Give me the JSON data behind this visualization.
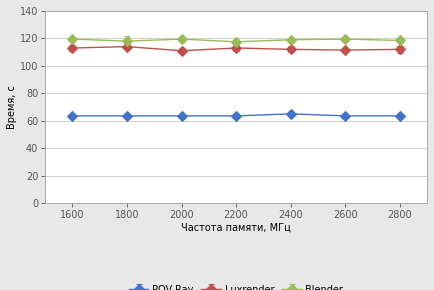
{
  "x": [
    1600,
    1800,
    2000,
    2200,
    2400,
    2600,
    2800
  ],
  "povray_y": [
    63.5,
    63.5,
    63.5,
    63.5,
    65.0,
    63.5,
    63.5
  ],
  "povray_err": [
    0.3,
    0.3,
    0.3,
    0.3,
    0.3,
    0.3,
    0.3
  ],
  "luxrender_y": [
    113.0,
    114.0,
    111.0,
    113.0,
    112.0,
    111.5,
    112.0
  ],
  "luxrender_err": [
    2.5,
    2.0,
    2.0,
    2.5,
    2.0,
    1.5,
    2.5
  ],
  "blender_y": [
    119.5,
    118.0,
    119.5,
    117.5,
    119.0,
    119.5,
    118.5
  ],
  "blender_err": [
    1.5,
    3.5,
    1.5,
    2.0,
    1.5,
    1.5,
    1.5
  ],
  "povray_color": "#4472C4",
  "luxrender_color": "#C0504D",
  "blender_color": "#9BBB59",
  "xlabel": "Частота памяти, МГц",
  "ylabel": "Время, с",
  "ylim": [
    0,
    140
  ],
  "yticks": [
    0,
    20,
    40,
    60,
    80,
    100,
    120,
    140
  ],
  "xlim": [
    1500,
    2900
  ],
  "xticks": [
    1600,
    1800,
    2000,
    2200,
    2400,
    2600,
    2800
  ],
  "legend_labels": [
    "POV-Ray",
    "Luxrender",
    "Blender"
  ],
  "figure_facecolor": "#E8E8E8",
  "plot_bg_color": "#FFFFFF",
  "grid_color": "#C8C8C8",
  "spine_color": "#AAAAAA"
}
